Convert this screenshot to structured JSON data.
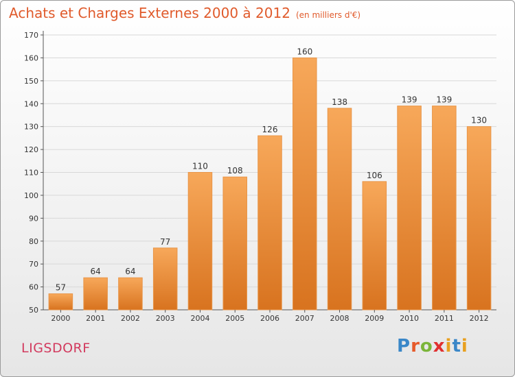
{
  "header": {
    "title": "Achats et Charges Externes 2000 à 2012",
    "unit": "(en milliers d'€)"
  },
  "footer": {
    "commune": "LIGSDORF",
    "logo_letters": [
      "P",
      "r",
      "o",
      "x",
      "i",
      "t",
      "i"
    ]
  },
  "colors": {
    "bar_light": "#f7a85a",
    "bar_dark": "#d8731f",
    "grid": "#d8d8d8",
    "title": "#e05a2b",
    "commune": "#d23a5e"
  },
  "chart_data": {
    "type": "bar",
    "title": "Achats et Charges Externes 2000 à 2012",
    "subtitle": "(en milliers d'€)",
    "xlabel": "",
    "ylabel": "",
    "categories": [
      "2000",
      "2001",
      "2002",
      "2003",
      "2004",
      "2005",
      "2006",
      "2007",
      "2008",
      "2009",
      "2010",
      "2011",
      "2012"
    ],
    "values": [
      57,
      64,
      64,
      77,
      110,
      108,
      126,
      160,
      138,
      106,
      139,
      139,
      130
    ],
    "ylim": [
      50,
      170
    ],
    "yticks": [
      50,
      60,
      70,
      80,
      90,
      100,
      110,
      120,
      130,
      140,
      150,
      160,
      170
    ],
    "grid": true,
    "legend": "none"
  }
}
